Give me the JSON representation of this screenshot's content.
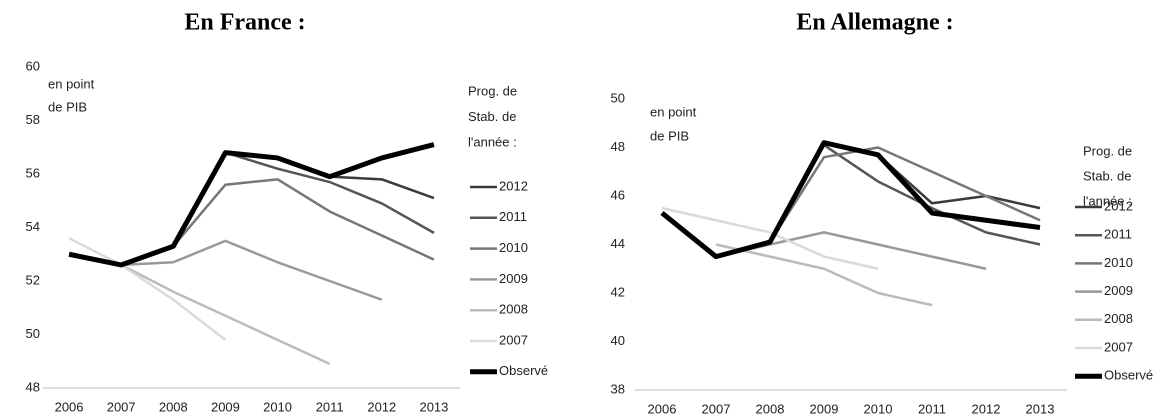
{
  "chart_data": [
    {
      "type": "line",
      "title": "En France :",
      "annotation": [
        "en point",
        "de PIB"
      ],
      "legend_title": [
        "Prog. de",
        "Stab. de",
        "l'année :"
      ],
      "categories": [
        "2006",
        "2007",
        "2008",
        "2009",
        "2010",
        "2011",
        "2012",
        "2013"
      ],
      "ylim": [
        48,
        60
      ],
      "yticks": [
        48,
        50,
        52,
        54,
        56,
        58,
        60
      ],
      "series": [
        {
          "name": "2012",
          "color": "#3a3a3a",
          "values": [
            null,
            null,
            null,
            null,
            56.6,
            55.9,
            55.8,
            55.1
          ]
        },
        {
          "name": "2011",
          "color": "#555555",
          "values": [
            null,
            null,
            null,
            56.8,
            56.2,
            55.7,
            54.9,
            53.8
          ]
        },
        {
          "name": "2010",
          "color": "#777777",
          "values": [
            null,
            null,
            53.3,
            55.6,
            55.8,
            54.6,
            53.7,
            52.8
          ]
        },
        {
          "name": "2009",
          "color": "#999999",
          "values": [
            null,
            52.6,
            52.7,
            53.5,
            52.7,
            52.0,
            51.3,
            null
          ]
        },
        {
          "name": "2008",
          "color": "#bbbbbb",
          "values": [
            null,
            52.6,
            51.6,
            50.7,
            49.8,
            48.9,
            null,
            null
          ]
        },
        {
          "name": "2007",
          "color": "#dadada",
          "values": [
            53.6,
            52.6,
            51.3,
            49.8,
            null,
            null,
            null,
            null
          ]
        },
        {
          "name": "Observé",
          "color": "#000000",
          "values": [
            53.0,
            52.6,
            53.3,
            56.8,
            56.6,
            55.9,
            56.6,
            57.1
          ]
        }
      ]
    },
    {
      "type": "line",
      "title": "En Allemagne :",
      "annotation": [
        "en point",
        "de PIB"
      ],
      "legend_title": [
        "Prog. de",
        "Stab. de",
        "l'année :"
      ],
      "categories": [
        "2006",
        "2007",
        "2008",
        "2009",
        "2010",
        "2011",
        "2012",
        "2013"
      ],
      "ylim": [
        38,
        50
      ],
      "yticks": [
        38,
        40,
        42,
        44,
        46,
        48,
        50
      ],
      "series": [
        {
          "name": "2012",
          "color": "#3a3a3a",
          "values": [
            null,
            null,
            null,
            null,
            47.7,
            45.7,
            46.0,
            45.5
          ]
        },
        {
          "name": "2011",
          "color": "#555555",
          "values": [
            null,
            null,
            null,
            48.1,
            46.6,
            45.5,
            44.5,
            44.0
          ]
        },
        {
          "name": "2010",
          "color": "#777777",
          "values": [
            null,
            null,
            44.1,
            47.6,
            48.0,
            47.0,
            46.0,
            45.0
          ]
        },
        {
          "name": "2009",
          "color": "#999999",
          "values": [
            null,
            43.5,
            44.0,
            44.5,
            44.0,
            43.5,
            43.0,
            null
          ]
        },
        {
          "name": "2008",
          "color": "#bbbbbb",
          "values": [
            null,
            44.0,
            43.5,
            43.0,
            42.0,
            41.5,
            null,
            null
          ]
        },
        {
          "name": "2007",
          "color": "#dadada",
          "values": [
            45.5,
            45.0,
            44.5,
            43.5,
            43.0,
            null,
            null,
            null
          ]
        },
        {
          "name": "Observé",
          "color": "#000000",
          "values": [
            45.3,
            43.5,
            44.1,
            48.2,
            47.7,
            45.3,
            45.0,
            44.7
          ]
        }
      ]
    }
  ]
}
